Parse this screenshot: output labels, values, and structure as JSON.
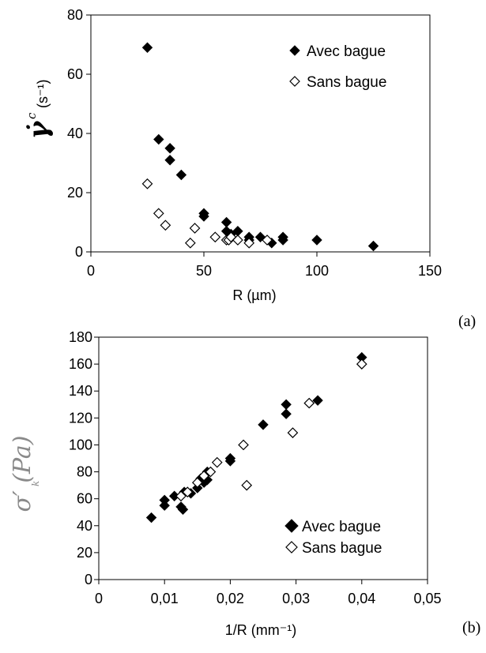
{
  "chart_data": [
    {
      "type": "scatter",
      "panel_label": "(a)",
      "xlabel": "R (µm)",
      "ylabel": "γ̇ c (s⁻¹)",
      "xlim": [
        0,
        150
      ],
      "ylim": [
        0,
        80
      ],
      "xticks": [
        "0",
        "50",
        "100",
        "150"
      ],
      "yticks": [
        "0",
        "20",
        "40",
        "60",
        "80"
      ],
      "legend_position": "top-right",
      "series": [
        {
          "name": "Avec bague",
          "marker": "filled-diamond",
          "points": [
            [
              25,
              69
            ],
            [
              30,
              38
            ],
            [
              35,
              35
            ],
            [
              35,
              31
            ],
            [
              40,
              26
            ],
            [
              50,
              13
            ],
            [
              50,
              12
            ],
            [
              60,
              10
            ],
            [
              60,
              7
            ],
            [
              62,
              6
            ],
            [
              65,
              7
            ],
            [
              70,
              5
            ],
            [
              70,
              4
            ],
            [
              75,
              5
            ],
            [
              80,
              3
            ],
            [
              85,
              4
            ],
            [
              85,
              5
            ],
            [
              100,
              4
            ],
            [
              125,
              2
            ]
          ]
        },
        {
          "name": "Sans bague",
          "marker": "open-diamond",
          "points": [
            [
              25,
              23
            ],
            [
              30,
              13
            ],
            [
              33,
              9
            ],
            [
              44,
              3
            ],
            [
              46,
              8
            ],
            [
              55,
              5
            ],
            [
              60,
              4
            ],
            [
              61,
              4
            ],
            [
              62,
              5
            ],
            [
              65,
              4
            ],
            [
              70,
              3
            ],
            [
              78,
              4
            ]
          ]
        }
      ]
    },
    {
      "type": "scatter",
      "panel_label": "(b)",
      "xlabel": "1/R (mm⁻¹)",
      "ylabel": "σ′ (Pa)",
      "xlim": [
        0,
        0.05
      ],
      "ylim": [
        0,
        180
      ],
      "xticks": [
        "0",
        "0,01",
        "0,02",
        "0,03",
        "0,04",
        "0,05"
      ],
      "yticks": [
        "0",
        "20",
        "40",
        "60",
        "80",
        "100",
        "120",
        "140",
        "160",
        "180"
      ],
      "legend_position": "bottom-right",
      "series": [
        {
          "name": "Avec bague",
          "marker": "filled-diamond",
          "points": [
            [
              0.008,
              46
            ],
            [
              0.01,
              55
            ],
            [
              0.01,
              59
            ],
            [
              0.0115,
              62
            ],
            [
              0.0125,
              54
            ],
            [
              0.0128,
              52
            ],
            [
              0.013,
              65
            ],
            [
              0.014,
              64
            ],
            [
              0.015,
              68
            ],
            [
              0.0155,
              75
            ],
            [
              0.016,
              72
            ],
            [
              0.0165,
              80
            ],
            [
              0.0165,
              74
            ],
            [
              0.02,
              88
            ],
            [
              0.02,
              90
            ],
            [
              0.025,
              115
            ],
            [
              0.0285,
              123
            ],
            [
              0.0285,
              130
            ],
            [
              0.0333,
              133
            ],
            [
              0.04,
              165
            ]
          ]
        },
        {
          "name": "Sans bague",
          "marker": "open-diamond",
          "points": [
            [
              0.0125,
              62
            ],
            [
              0.0135,
              65
            ],
            [
              0.015,
              72
            ],
            [
              0.016,
              77
            ],
            [
              0.017,
              80
            ],
            [
              0.018,
              87
            ],
            [
              0.022,
              100
            ],
            [
              0.0225,
              70
            ],
            [
              0.0295,
              109
            ],
            [
              0.032,
              131
            ],
            [
              0.04,
              160
            ]
          ]
        }
      ]
    }
  ]
}
